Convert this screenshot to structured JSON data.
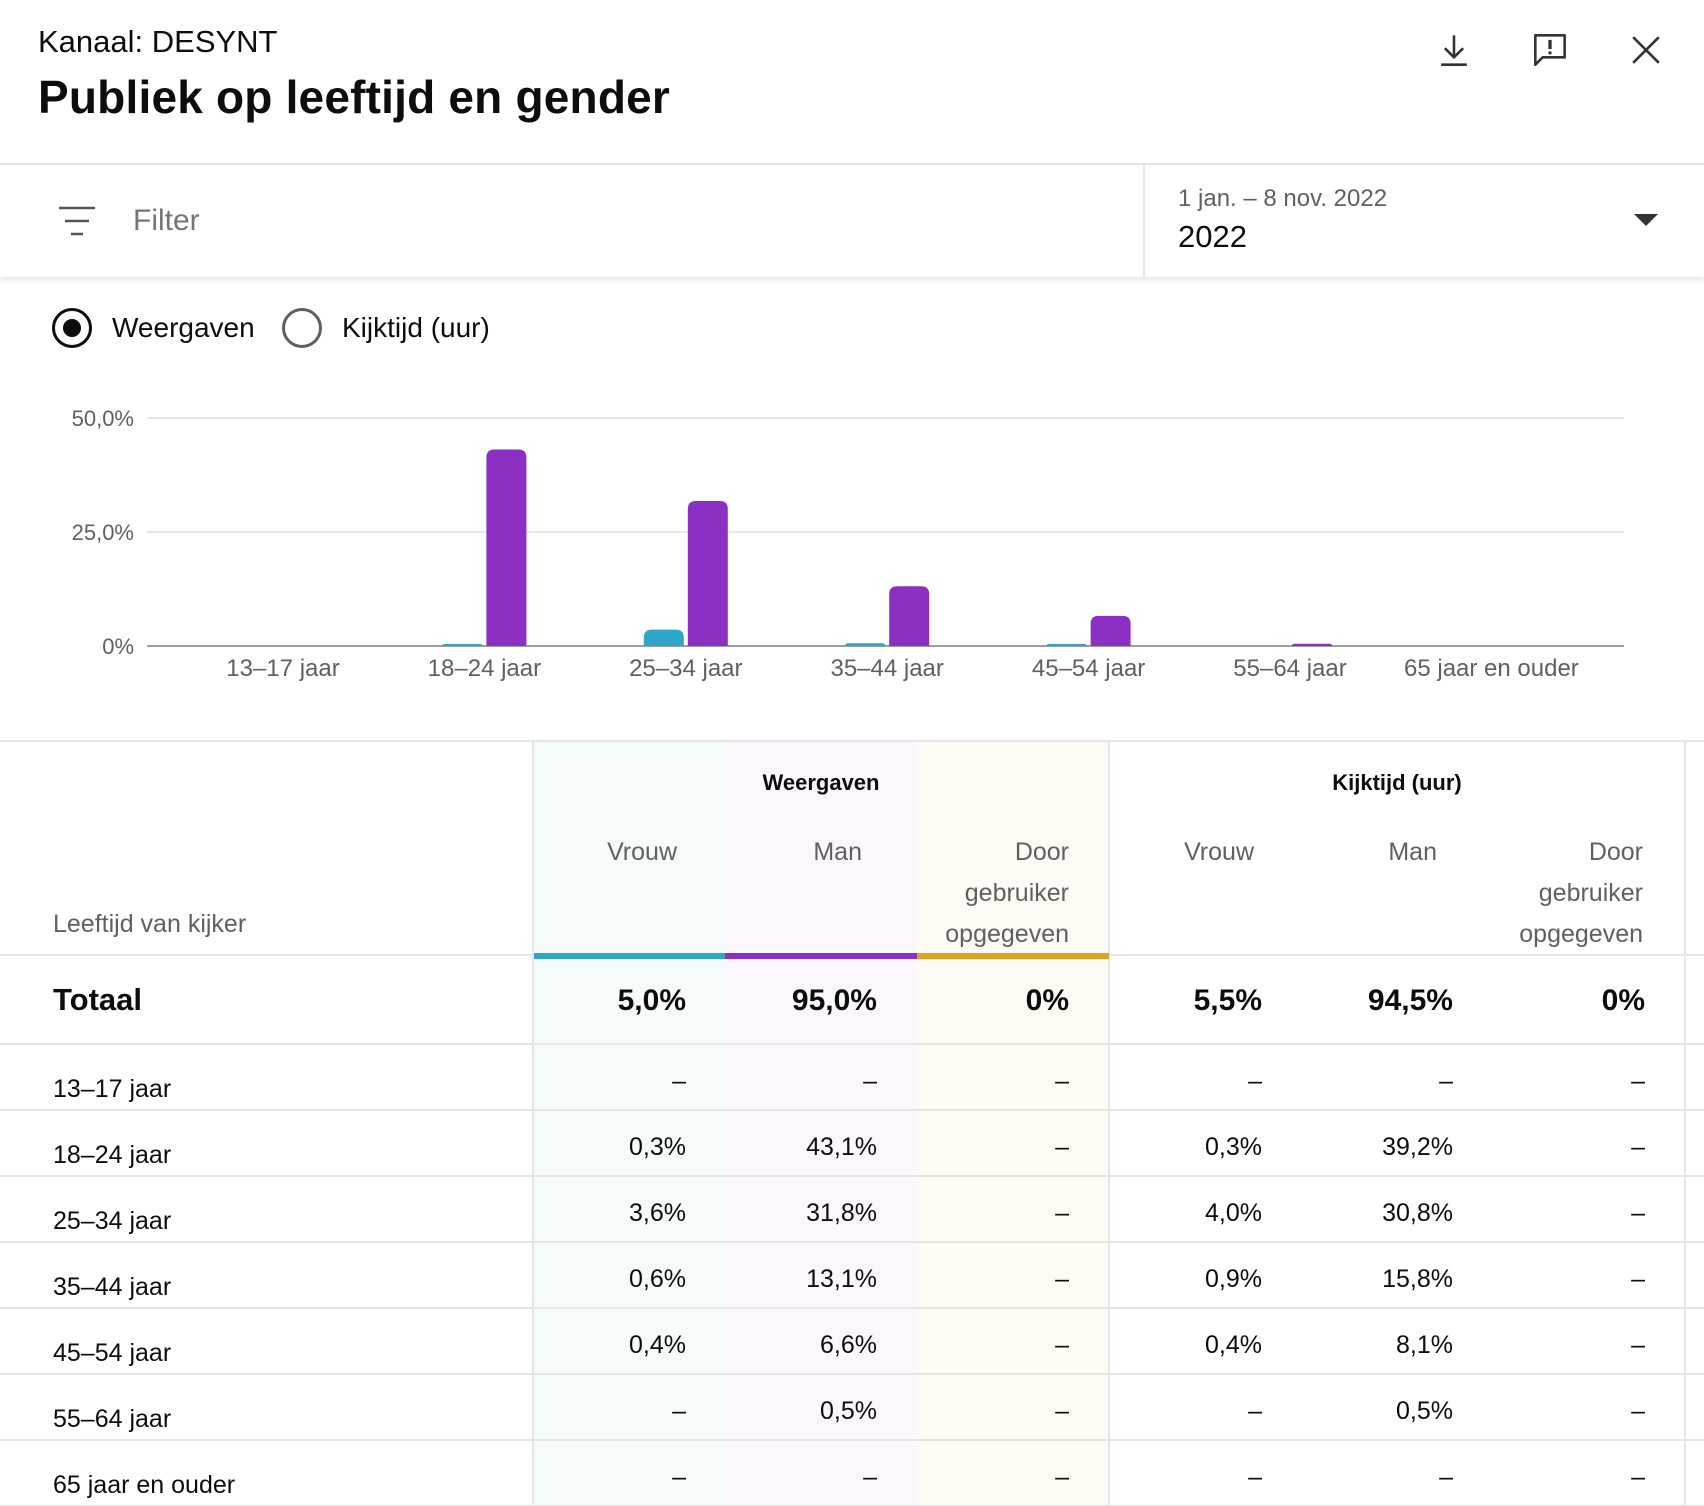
{
  "header": {
    "channel": "Kanaal: DESYNT",
    "title": "Publiek op leeftijd en gender"
  },
  "icons": {
    "download": "download-icon",
    "feedback": "feedback-icon",
    "close": "close-icon",
    "filter": "filter-icon",
    "dropdown": "chevron-down-icon"
  },
  "filter": {
    "placeholder": "Filter"
  },
  "date": {
    "range": "1 jan. – 8 nov. 2022",
    "value": "2022"
  },
  "metric_toggle": {
    "options": [
      "Weergaven",
      "Kijktijd (uur)"
    ],
    "selected": "Weergaven"
  },
  "colors": {
    "female": "#2ea6c7",
    "male": "#8c2fc3",
    "user_specified": "#e0a020",
    "gridline": "#e0e0e0",
    "axis": "#9e9e9e"
  },
  "chart_data": {
    "type": "bar",
    "title": "",
    "xlabel": "",
    "ylabel": "",
    "ylim": [
      0,
      50
    ],
    "yticks": [
      "50,0%",
      "25,0%",
      "0%"
    ],
    "ytick_values": [
      50,
      25,
      0
    ],
    "categories": [
      "13–17 jaar",
      "18–24 jaar",
      "25–34 jaar",
      "35–44 jaar",
      "45–54 jaar",
      "55–64 jaar",
      "65 jaar en ouder"
    ],
    "series": [
      {
        "name": "Vrouw",
        "color": "#2ea6c7",
        "values": [
          0,
          0.3,
          3.6,
          0.6,
          0.4,
          0,
          0
        ]
      },
      {
        "name": "Man",
        "color": "#8c2fc3",
        "values": [
          0,
          43.1,
          31.8,
          13.1,
          6.6,
          0.5,
          0
        ]
      },
      {
        "name": "Door gebruiker opgegeven",
        "color": "#e0a020",
        "values": [
          0,
          0,
          0,
          0,
          0,
          0,
          0
        ]
      }
    ]
  },
  "table": {
    "age_header": "Leeftijd van kijker",
    "groups": [
      {
        "label": "Weergaven",
        "columns": [
          "Vrouw",
          "Man",
          "Door gebruiker opgegeven"
        ]
      },
      {
        "label": "Kijktijd (uur)",
        "columns": [
          "Vrouw",
          "Man",
          "Door gebruiker opgegeven"
        ]
      }
    ],
    "user_specified_lines": [
      "Door",
      "gebruiker",
      "opgegeven"
    ],
    "total": {
      "label": "Totaal",
      "values": [
        "5,0%",
        "95,0%",
        "0%",
        "5,5%",
        "94,5%",
        "0%"
      ]
    },
    "rows": [
      {
        "label": "13–17 jaar",
        "values": [
          "–",
          "–",
          "–",
          "–",
          "–",
          "–"
        ]
      },
      {
        "label": "18–24 jaar",
        "values": [
          "0,3%",
          "43,1%",
          "–",
          "0,3%",
          "39,2%",
          "–"
        ]
      },
      {
        "label": "25–34 jaar",
        "values": [
          "3,6%",
          "31,8%",
          "–",
          "4,0%",
          "30,8%",
          "–"
        ]
      },
      {
        "label": "35–44 jaar",
        "values": [
          "0,6%",
          "13,1%",
          "–",
          "0,9%",
          "15,8%",
          "–"
        ]
      },
      {
        "label": "45–54 jaar",
        "values": [
          "0,4%",
          "6,6%",
          "–",
          "0,4%",
          "8,1%",
          "–"
        ]
      },
      {
        "label": "55–64 jaar",
        "values": [
          "–",
          "0,5%",
          "–",
          "–",
          "0,5%",
          "–"
        ]
      },
      {
        "label": "65 jaar en ouder",
        "values": [
          "–",
          "–",
          "–",
          "–",
          "–",
          "–"
        ]
      }
    ]
  }
}
